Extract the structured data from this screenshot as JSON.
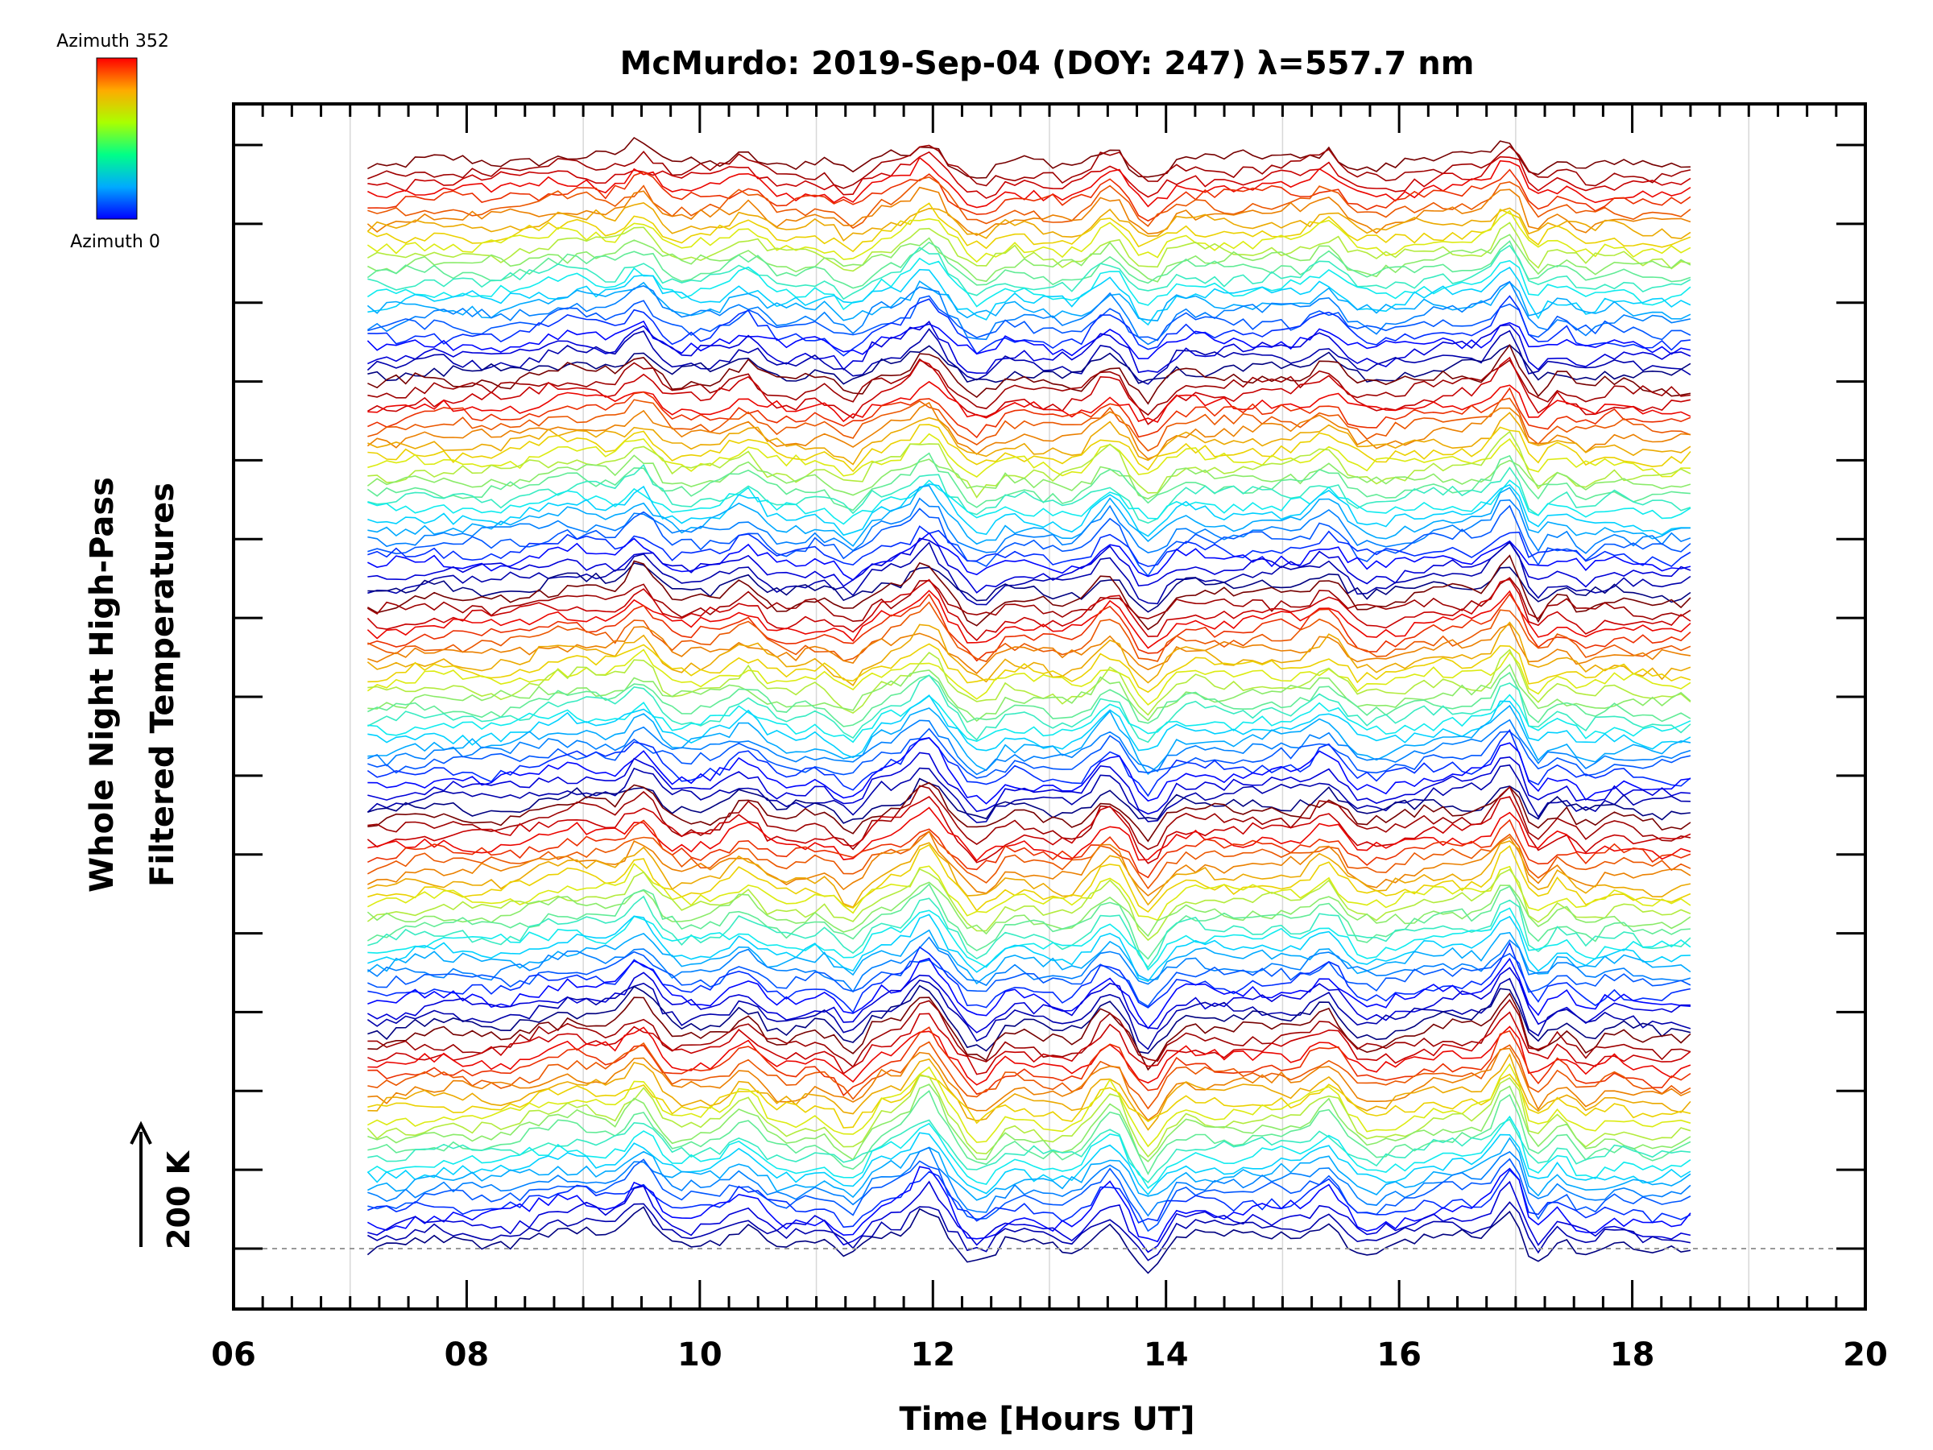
{
  "chart_data": {
    "type": "line",
    "title": "McMurdo: 2019-Sep-04 (DOY: 247) λ=557.7 nm",
    "xlabel": "Time [Hours UT]",
    "ylabel": [
      "Whole Night High-Pass",
      "Filtered Temperatures"
    ],
    "xlim": [
      6,
      20
    ],
    "x_ticks": [
      "06",
      "08",
      "10",
      "12",
      "14",
      "16",
      "18",
      "20"
    ],
    "x_tick_values": [
      6,
      8,
      10,
      12,
      14,
      16,
      18,
      20
    ],
    "y_ticks_unlabeled": 15,
    "scale_bar_label": "200 K",
    "colorbar": {
      "top_label": "Azimuth 352",
      "bottom_label": "Azimuth 0",
      "colors": [
        "#0000ff",
        "#00ccff",
        "#00ff66",
        "#ccff00",
        "#ffcc00",
        "#ff0000"
      ]
    },
    "data_range_hours": [
      7.15,
      18.5
    ],
    "num_azimuths": 24,
    "num_groups": 5,
    "baseline_offset_label": "dashed zero line",
    "common_events_hours": [
      {
        "t": 9.5,
        "amp": 28
      },
      {
        "t": 10.4,
        "amp": 18
      },
      {
        "t": 11.3,
        "amp": -25
      },
      {
        "t": 11.95,
        "amp": 30
      },
      {
        "t": 12.4,
        "amp": -20
      },
      {
        "t": 13.5,
        "amp": 22
      },
      {
        "t": 13.85,
        "amp": -30
      },
      {
        "t": 15.4,
        "amp": 22
      },
      {
        "t": 17.0,
        "amp": 55
      },
      {
        "t": 17.1,
        "amp": -45
      },
      {
        "t": 17.6,
        "amp": -18
      }
    ]
  }
}
